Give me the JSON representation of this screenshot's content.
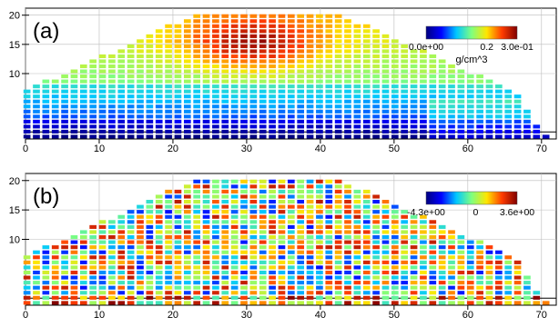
{
  "chart_data": [
    {
      "type": "heatmap",
      "panel_label": "(a)",
      "x_ticks": [
        "0",
        "10",
        "20",
        "30",
        "40",
        "50",
        "60",
        "70"
      ],
      "y_ticks": [
        "10",
        "15",
        "20"
      ],
      "xlim": [
        0,
        72
      ],
      "ylim": [
        -1.2,
        21.2
      ],
      "colorbar": {
        "min": 0,
        "max": 0.3,
        "labels": [
          "0.0e+00",
          "0.2",
          "3.0e-01"
        ],
        "label_values": [
          0,
          0.2,
          0.3
        ],
        "unit": "g/cm^3"
      },
      "field": "smooth-density",
      "grid": true
    },
    {
      "type": "heatmap",
      "panel_label": "(b)",
      "x_ticks": [
        "0",
        "10",
        "20",
        "30",
        "40",
        "50",
        "60",
        "70"
      ],
      "y_ticks": [
        "10",
        "15",
        "20"
      ],
      "xlim": [
        0,
        72
      ],
      "ylim": [
        -1.2,
        21.2
      ],
      "colorbar": {
        "min": -4.3,
        "max": 3.6,
        "labels": [
          "-4.3e+00",
          "0",
          "3.6e+00"
        ],
        "label_values": [
          -4.3,
          0,
          3.6
        ],
        "unit": ""
      },
      "field": "noisy-residual",
      "grid": true
    }
  ],
  "colors": {
    "colormap": [
      "#00007f",
      "#0000ff",
      "#00c8ff",
      "#7fff7f",
      "#ffe600",
      "#ff3c00",
      "#7f0000"
    ],
    "axis": "#000000",
    "background": "#ffffff"
  }
}
